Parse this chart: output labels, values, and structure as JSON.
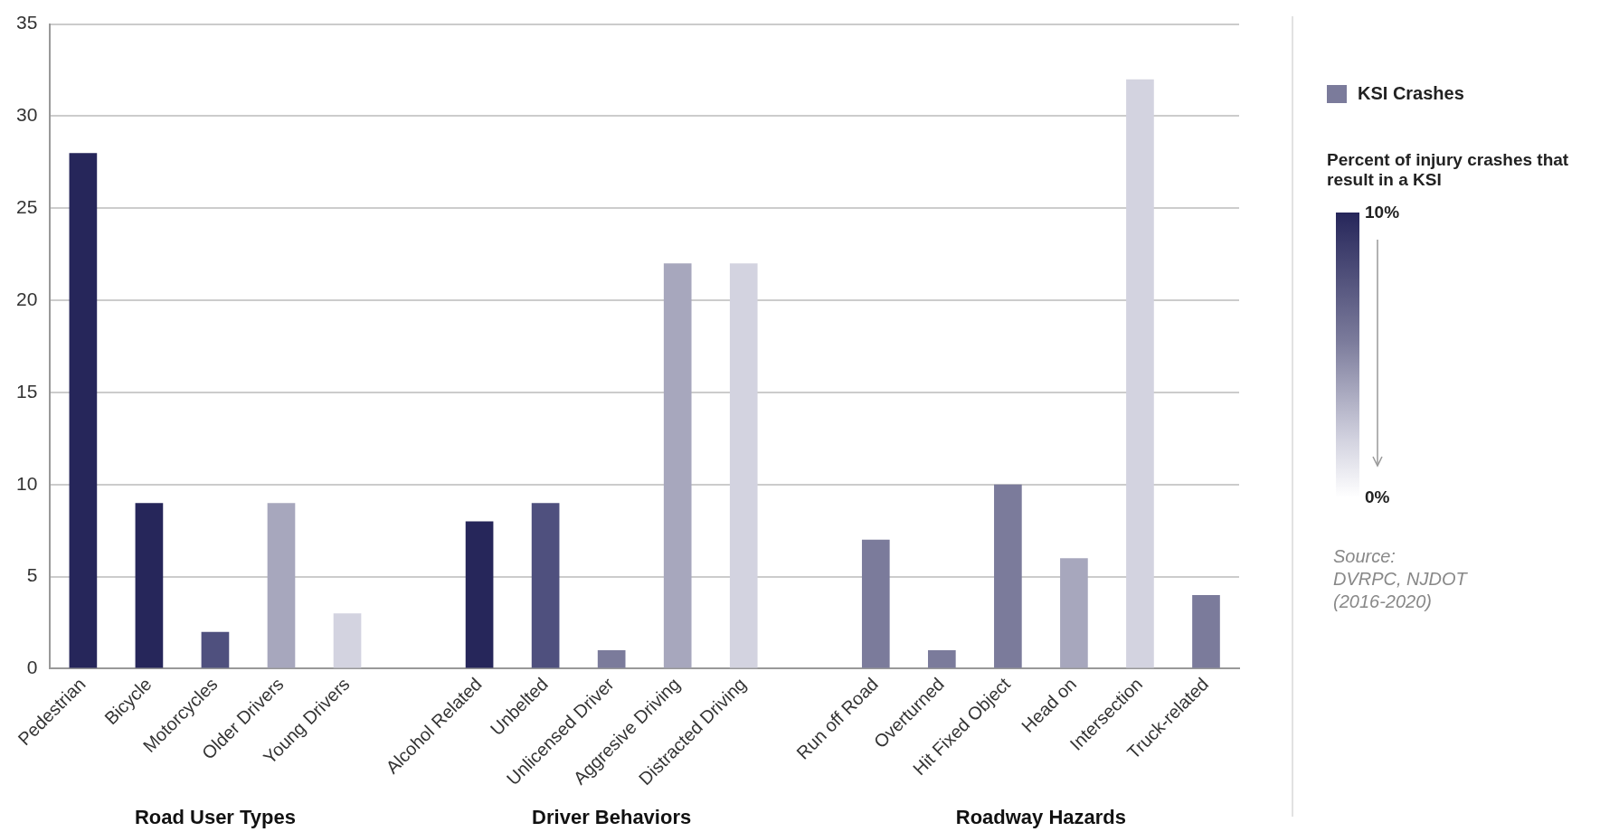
{
  "chart_data": {
    "type": "bar",
    "categories": [
      "Pedestrian",
      "Bicycle",
      "Motorcycles",
      "Older Drivers",
      "Young Drivers",
      null,
      "Alcohol Related",
      "Unbelted",
      "Unlicensed Driver",
      "Aggresive Driving",
      "Distracted Driving",
      null,
      "Run off Road",
      "Overturned",
      "Hit Fixed Object",
      "Head on",
      "Intersection",
      "Truck-related"
    ],
    "series": [
      {
        "name": "KSI Crashes",
        "color": "#7b7b9b",
        "colors": [
          "#26265a",
          "#26265a",
          "#4f507e",
          "#a7a7bd",
          "#d3d3e0",
          null,
          "#26265a",
          "#4f507e",
          "#7b7b9b",
          "#a7a7bd",
          "#d3d3e0",
          null,
          "#7b7b9b",
          "#7b7b9b",
          "#7b7b9b",
          "#a7a7bd",
          "#d3d3e0",
          "#7b7b9b"
        ],
        "values": [
          28,
          9,
          2,
          9,
          3,
          null,
          8,
          9,
          1,
          22,
          22,
          null,
          7,
          1,
          10,
          6,
          32,
          4
        ]
      }
    ],
    "ylim": [
      0,
      35
    ],
    "yticks": [
      0,
      5,
      10,
      15,
      20,
      25,
      30,
      35
    ],
    "grid": "y",
    "legend": "right",
    "clabel": "Percent of injury crashes that result in a KSI",
    "clim": [
      0,
      10
    ],
    "cticks": [
      {
        "value": 10,
        "label": "10%"
      },
      {
        "value": 0,
        "label": "0%"
      }
    ],
    "annotations": [
      "Road User Types",
      "Driver Behaviors",
      "Roadway Hazards",
      "Source:\nDVRPC, NJDOT\n(2016-2020)"
    ]
  }
}
